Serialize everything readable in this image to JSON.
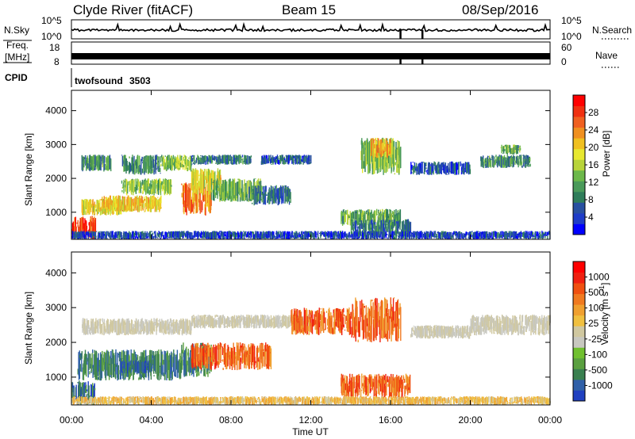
{
  "header": {
    "station": "Clyde River (fitACF)",
    "beam": "Beam 15",
    "date": "08/Sep/2016"
  },
  "noise_panel": {
    "left_label": "N.Sky",
    "left_ticks": [
      "10^5",
      "10^0"
    ],
    "right_label": "N.Search",
    "right_ticks": [
      "10^5",
      "10^0"
    ],
    "line_color": "#000000"
  },
  "freq_panel": {
    "left_label_line1": "Freq.",
    "left_label_line2": "[MHz]",
    "left_ticks": [
      "18",
      "8"
    ],
    "right_label": "Nave",
    "right_ticks": [
      "60",
      "0"
    ]
  },
  "cpid_panel": {
    "label": "CPID",
    "program": "twofsound",
    "cpid": "3503"
  },
  "x_axis": {
    "label": "Time UT",
    "ticks": [
      "00:00",
      "04:00",
      "08:00",
      "12:00",
      "16:00",
      "20:00",
      "00:00"
    ],
    "range_hours": [
      0,
      24
    ]
  },
  "chart_data": [
    {
      "type": "heatmap",
      "name": "power",
      "ylabel": "Slant Range [km]",
      "yticks": [
        1000,
        2000,
        3000,
        4000
      ],
      "ylim": [
        200,
        4600
      ],
      "xlim": [
        0,
        24
      ],
      "colorbar": {
        "label": "Power [dB]",
        "ticks": [
          "4",
          "8",
          "12",
          "16",
          "20",
          "24",
          "28"
        ],
        "range": [
          0,
          32
        ],
        "colors": [
          "#0000ff",
          "#1e3cc8",
          "#2850a0",
          "#2f7d5a",
          "#4a9a5a",
          "#6cb84a",
          "#b8d43a",
          "#e8e830",
          "#f0c020",
          "#f09020",
          "#f06020",
          "#f03010",
          "#ff0000"
        ]
      },
      "regions": [
        {
          "t": [
            0.0,
            1.2
          ],
          "r": [
            200,
            900
          ],
          "level": 28
        },
        {
          "t": [
            0.5,
            2.5
          ],
          "r": [
            900,
            1400
          ],
          "level": 18
        },
        {
          "t": [
            1.5,
            4.5
          ],
          "r": [
            1000,
            1500
          ],
          "level": 20
        },
        {
          "t": [
            2.5,
            5.0
          ],
          "r": [
            1500,
            2000
          ],
          "level": 14
        },
        {
          "t": [
            5.5,
            7.0
          ],
          "r": [
            900,
            1900
          ],
          "level": 24
        },
        {
          "t": [
            6.0,
            7.5
          ],
          "r": [
            1500,
            2300
          ],
          "level": 18
        },
        {
          "t": [
            7.0,
            9.5
          ],
          "r": [
            1300,
            2000
          ],
          "level": 12
        },
        {
          "t": [
            9.0,
            11.0
          ],
          "r": [
            1200,
            1800
          ],
          "level": 8
        },
        {
          "t": [
            0.5,
            2.0
          ],
          "r": [
            2200,
            2700
          ],
          "level": 10
        },
        {
          "t": [
            2.5,
            4.5
          ],
          "r": [
            2100,
            2700
          ],
          "level": 10
        },
        {
          "t": [
            4.5,
            6.0
          ],
          "r": [
            2200,
            2700
          ],
          "level": 14
        },
        {
          "t": [
            6.0,
            9.0
          ],
          "r": [
            2400,
            2700
          ],
          "level": 8
        },
        {
          "t": [
            9.5,
            12.0
          ],
          "r": [
            2400,
            2700
          ],
          "level": 6
        },
        {
          "t": [
            13.5,
            16.5
          ],
          "r": [
            600,
            1100
          ],
          "level": 12
        },
        {
          "t": [
            14.0,
            17.0
          ],
          "r": [
            300,
            800
          ],
          "level": 8
        },
        {
          "t": [
            14.5,
            16.5
          ],
          "r": [
            2100,
            3200
          ],
          "level": 14
        },
        {
          "t": [
            15.0,
            16.0
          ],
          "r": [
            2600,
            3200
          ],
          "level": 22
        },
        {
          "t": [
            17.0,
            20.0
          ],
          "r": [
            2100,
            2500
          ],
          "level": 6
        },
        {
          "t": [
            20.5,
            23.0
          ],
          "r": [
            2300,
            2700
          ],
          "level": 10
        },
        {
          "t": [
            21.5,
            22.5
          ],
          "r": [
            2700,
            3000
          ],
          "level": 12
        },
        {
          "t": [
            0.0,
            24.0
          ],
          "r": [
            200,
            450
          ],
          "level": 5
        }
      ]
    },
    {
      "type": "heatmap",
      "name": "velocity",
      "ylabel": "Slant Range [km]",
      "yticks": [
        1000,
        2000,
        3000,
        4000
      ],
      "ylim": [
        200,
        4600
      ],
      "xlim": [
        0,
        24
      ],
      "colorbar": {
        "label": "Velocity [m s",
        "label_sup": "-1",
        "label_end": "]",
        "ticks": [
          "1000",
          "500",
          "100",
          "25",
          "-25",
          "-100",
          "-500",
          "-1000"
        ],
        "colors": [
          "#2040c0",
          "#3060a8",
          "#3a8050",
          "#5aa040",
          "#70c030",
          "#c8c8c0",
          "#d0c8a0",
          "#f0c040",
          "#f0a030",
          "#f07a20",
          "#f05010",
          "#f02010",
          "#ff0000"
        ]
      },
      "regions": [
        {
          "t": [
            0.0,
            1.2
          ],
          "r": [
            200,
            900
          ],
          "level": "toward-low"
        },
        {
          "t": [
            0.3,
            5.5
          ],
          "r": [
            900,
            1800
          ],
          "level": "toward-mid"
        },
        {
          "t": [
            2.5,
            4.0
          ],
          "r": [
            1100,
            1500
          ],
          "level": "toward-high"
        },
        {
          "t": [
            5.5,
            7.0
          ],
          "r": [
            1000,
            2000
          ],
          "level": "toward-mid"
        },
        {
          "t": [
            6.0,
            10.0
          ],
          "r": [
            1200,
            2000
          ],
          "level": "away-mid"
        },
        {
          "t": [
            0.5,
            6.0
          ],
          "r": [
            2200,
            2700
          ],
          "level": "near-zero"
        },
        {
          "t": [
            6.0,
            12.0
          ],
          "r": [
            2400,
            2800
          ],
          "level": "near-zero"
        },
        {
          "t": [
            11.0,
            14.0
          ],
          "r": [
            2200,
            3000
          ],
          "level": "away-mid"
        },
        {
          "t": [
            13.5,
            17.0
          ],
          "r": [
            400,
            1100
          ],
          "level": "away-mid"
        },
        {
          "t": [
            14.0,
            16.5
          ],
          "r": [
            2000,
            3300
          ],
          "level": "away-mid"
        },
        {
          "t": [
            17.0,
            20.0
          ],
          "r": [
            2100,
            2500
          ],
          "level": "near-zero"
        },
        {
          "t": [
            20.0,
            24.0
          ],
          "r": [
            2200,
            2800
          ],
          "level": "near-zero"
        },
        {
          "t": [
            0.0,
            24.0
          ],
          "r": [
            200,
            450
          ],
          "level": "away-low"
        }
      ]
    }
  ]
}
